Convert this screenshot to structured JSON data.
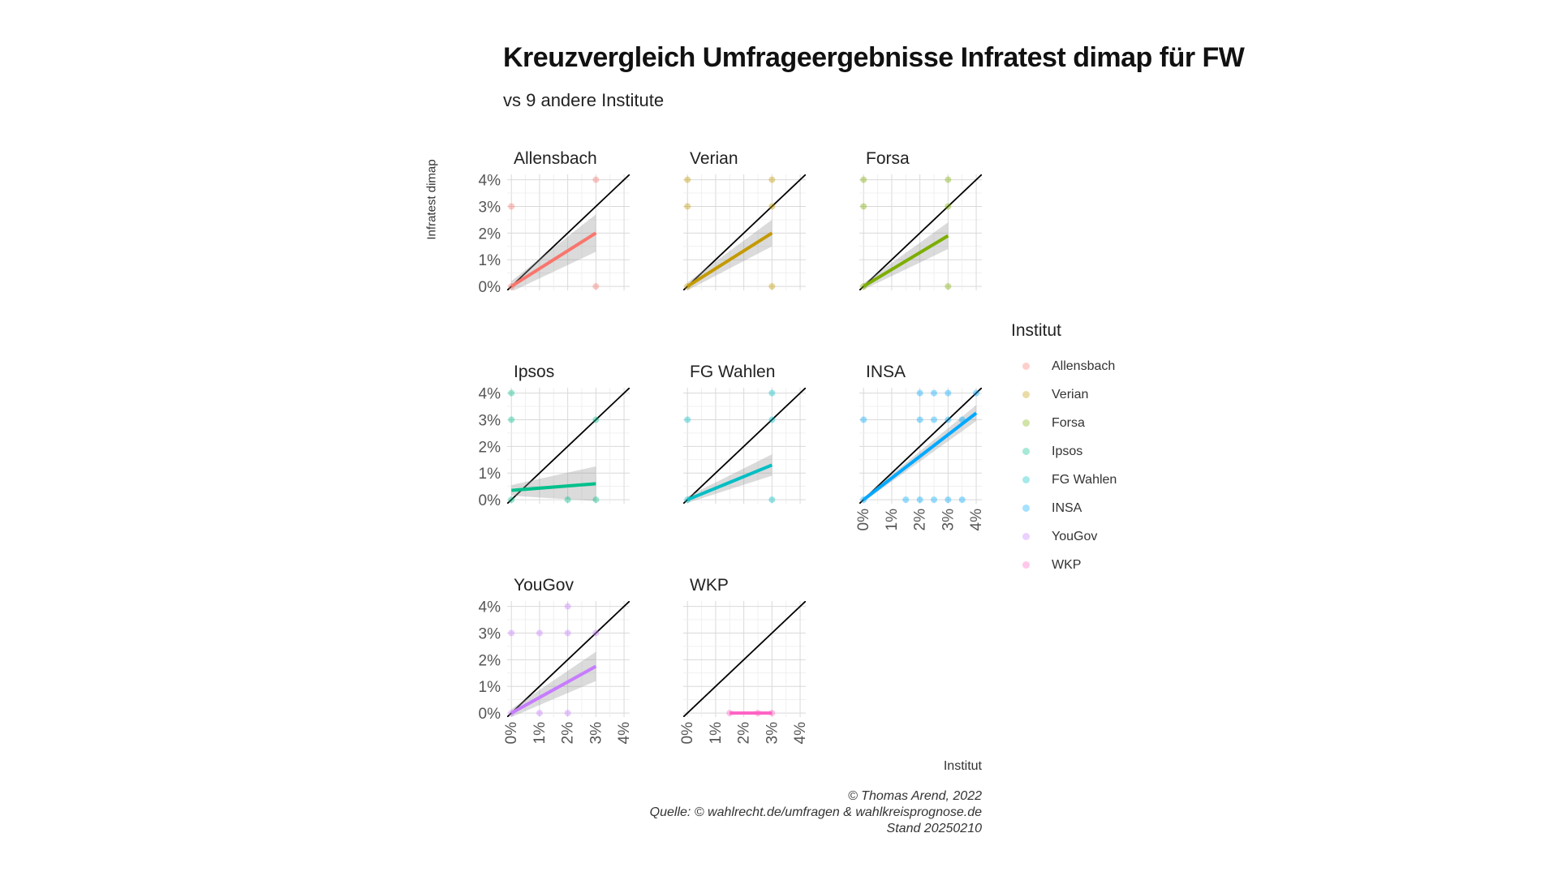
{
  "header": {
    "title": "Kreuzvergleich Umfrageergebnisse Infratest dimap für FW",
    "subtitle": "vs 9 andere Institute"
  },
  "axes": {
    "xlabel": "Institut",
    "ylabel": "Infratest dimap"
  },
  "legend": {
    "title": "Institut",
    "items": [
      {
        "label": "Allensbach",
        "color": "#F8766D"
      },
      {
        "label": "Verian",
        "color": "#C49A00"
      },
      {
        "label": "Forsa",
        "color": "#7CAE00"
      },
      {
        "label": "Ipsos",
        "color": "#00C08B"
      },
      {
        "label": "FG Wahlen",
        "color": "#00BFC4"
      },
      {
        "label": "INSA",
        "color": "#00A9FF"
      },
      {
        "label": "YouGov",
        "color": "#C77CFF"
      },
      {
        "label": "WKP",
        "color": "#FF61C3"
      }
    ]
  },
  "caption": {
    "line1": "© Thomas Arend, 2022",
    "line2": "Quelle: © wahlrecht.de/umfragen & wahlkreisprognose.de",
    "line3": "Stand 20250210"
  },
  "chart_data": {
    "type": "scatter",
    "facet_layout": "3 columns × 3 rows",
    "xlim": [
      0,
      4
    ],
    "ylim": [
      0,
      4
    ],
    "x_ticks": [
      "0%",
      "1%",
      "2%",
      "3%",
      "4%"
    ],
    "y_ticks": [
      "0%",
      "1%",
      "2%",
      "3%",
      "4%"
    ],
    "reference_line": "y = x",
    "grid": true,
    "legend_position": "right",
    "panels": [
      {
        "name": "Allensbach",
        "color": "#F8766D",
        "points": [
          [
            0,
            0
          ],
          [
            0,
            3
          ],
          [
            3,
            4
          ],
          [
            3,
            0
          ]
        ],
        "trend": [
          [
            0,
            0
          ],
          [
            3,
            2
          ]
        ],
        "band": [
          [
            0,
            0.2
          ],
          [
            3,
            2.7
          ]
        ]
      },
      {
        "name": "Verian",
        "color": "#C49A00",
        "points": [
          [
            0,
            0
          ],
          [
            0,
            3
          ],
          [
            0,
            4
          ],
          [
            3,
            4
          ],
          [
            3,
            3
          ],
          [
            3,
            0
          ]
        ],
        "trend": [
          [
            0,
            0
          ],
          [
            3,
            2
          ]
        ],
        "band": [
          [
            0,
            0.15
          ],
          [
            3,
            2.5
          ]
        ]
      },
      {
        "name": "Forsa",
        "color": "#7CAE00",
        "points": [
          [
            0,
            0
          ],
          [
            0,
            3
          ],
          [
            0,
            4
          ],
          [
            3,
            4
          ],
          [
            3,
            3
          ],
          [
            3,
            0
          ]
        ],
        "trend": [
          [
            0,
            0
          ],
          [
            3,
            1.9
          ]
        ],
        "band": [
          [
            0,
            0.12
          ],
          [
            3,
            2.4
          ]
        ]
      },
      {
        "name": "Ipsos",
        "color": "#00C08B",
        "points": [
          [
            0,
            0
          ],
          [
            0,
            3
          ],
          [
            0,
            4
          ],
          [
            2,
            0
          ],
          [
            3,
            3
          ],
          [
            3,
            0
          ]
        ],
        "trend": [
          [
            0,
            0.35
          ],
          [
            3,
            0.6
          ]
        ],
        "band": [
          [
            0,
            0.55
          ],
          [
            3,
            1.25
          ]
        ]
      },
      {
        "name": "FG Wahlen",
        "color": "#00BFC4",
        "points": [
          [
            0,
            0
          ],
          [
            0,
            3
          ],
          [
            3,
            4
          ],
          [
            3,
            3
          ],
          [
            3,
            0
          ]
        ],
        "trend": [
          [
            0,
            0
          ],
          [
            3,
            1.3
          ]
        ],
        "band": [
          [
            0,
            0.12
          ],
          [
            3,
            1.7
          ]
        ]
      },
      {
        "name": "INSA",
        "color": "#00A9FF",
        "points": [
          [
            0,
            0
          ],
          [
            0,
            3
          ],
          [
            2,
            4
          ],
          [
            2.5,
            4
          ],
          [
            3,
            4
          ],
          [
            4,
            4
          ],
          [
            2,
            3
          ],
          [
            2.5,
            3
          ],
          [
            3,
            3
          ],
          [
            3.5,
            3
          ],
          [
            1.5,
            0
          ],
          [
            2,
            0
          ],
          [
            2.5,
            0
          ],
          [
            3,
            0
          ],
          [
            3.5,
            0
          ]
        ],
        "trend": [
          [
            0,
            0
          ],
          [
            4,
            3.25
          ]
        ],
        "band": [
          [
            0,
            0.08
          ],
          [
            4,
            3.55
          ]
        ]
      },
      {
        "name": "YouGov",
        "color": "#C77CFF",
        "points": [
          [
            0,
            0
          ],
          [
            0,
            3
          ],
          [
            1,
            3
          ],
          [
            2,
            3
          ],
          [
            2,
            4
          ],
          [
            3,
            3
          ],
          [
            1,
            0
          ],
          [
            2,
            0
          ]
        ],
        "trend": [
          [
            0,
            0
          ],
          [
            3,
            1.75
          ]
        ],
        "band": [
          [
            0,
            0.15
          ],
          [
            3,
            2.3
          ]
        ]
      },
      {
        "name": "WKP",
        "color": "#FF61C3",
        "points": [
          [
            1.5,
            0
          ],
          [
            2.5,
            0
          ],
          [
            3,
            0
          ]
        ],
        "trend": [
          [
            1.5,
            0
          ],
          [
            3,
            0
          ]
        ],
        "band": [
          [
            1.5,
            0.05
          ],
          [
            3,
            0.05
          ]
        ]
      }
    ]
  }
}
